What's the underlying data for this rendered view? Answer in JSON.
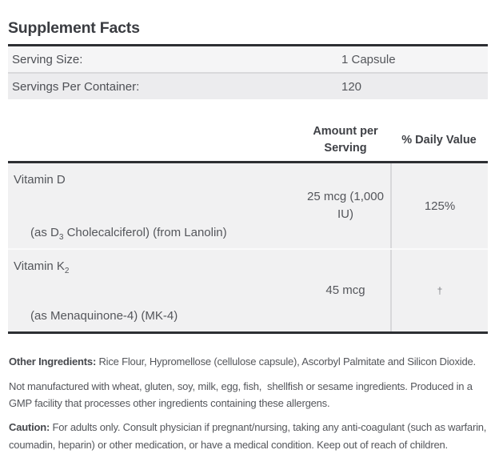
{
  "title": "Supplement Facts",
  "serving_info": {
    "serving_size": {
      "label": "Serving Size:",
      "value": "1 Capsule"
    },
    "servings_per_container": {
      "label": "Servings Per Container:",
      "value": "120"
    }
  },
  "nutrients": {
    "amount_header": "Amount per Serving",
    "daily_value_header": "% Daily Value",
    "rows": [
      {
        "name": "Vitamin D",
        "name_sub": "",
        "form_pre": "(as D",
        "form_sub": "3",
        "form_post": " Cholecalciferol) (from Lanolin)",
        "amount": "25 mcg (1,000 IU)",
        "daily_value": "125%"
      },
      {
        "name": "Vitamin K",
        "name_sub": "2",
        "form_pre": "(as Menaquinone-4) (MK-4)",
        "form_sub": "",
        "form_post": "",
        "amount": "45 mcg",
        "daily_value": "†"
      }
    ]
  },
  "footnotes": {
    "other_ingredients": {
      "label": "Other Ingredients:",
      "text": " Rice Flour, Hypromellose (cellulose capsule), Ascorbyl Palmitate and Silicon Dioxide."
    },
    "allergen_note": "Not manufactured with wheat, gluten, soy, milk, egg, fish,  shellfish or sesame ingredients. Produced in a GMP facility that processes other ingredients containing these allergens.",
    "caution": {
      "label": "Caution:",
      "text": " For adults only. Consult physician if pregnant/nursing, taking any anti-coagulant (such as warfarin, coumadin, heparin) or other medication, or have a medical condition. Keep out of reach of children."
    }
  },
  "colors": {
    "rule": "#2d2f33",
    "title": "#3a3c41",
    "text": "#54565b",
    "row_bg_light": "#f5f5f6",
    "row_bg_dark": "#ececee",
    "nutrient_row_bg": "#f1f1f2"
  }
}
